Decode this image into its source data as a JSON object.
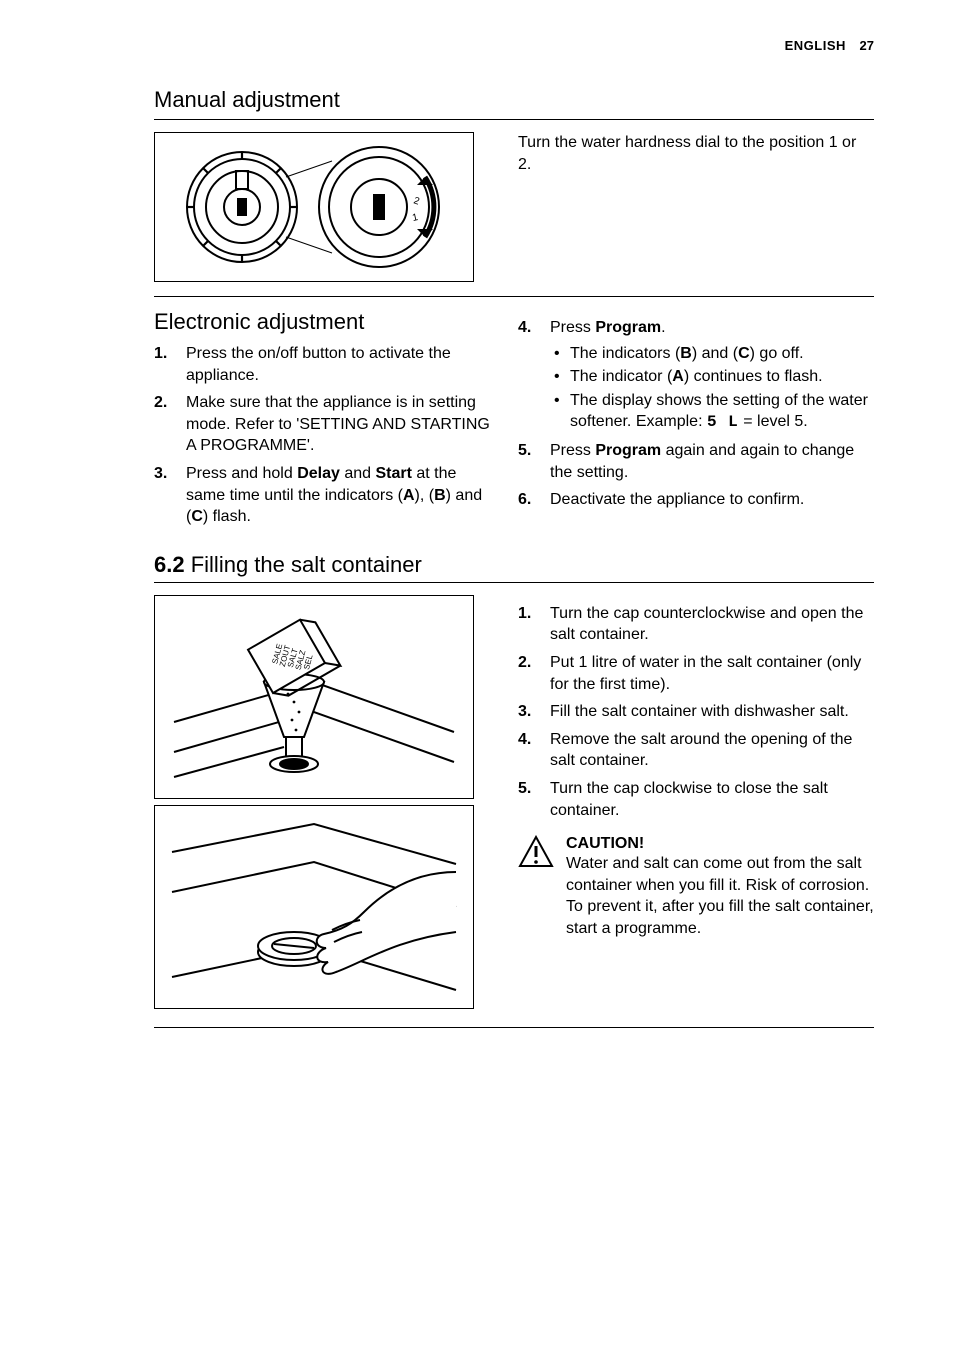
{
  "header": {
    "language": "ENGLISH",
    "page_number": "27"
  },
  "section_manual": {
    "title": "Manual adjustment",
    "right_text": "Turn the water hardness dial to the position 1 or 2."
  },
  "section_electronic": {
    "title": "Electronic adjustment",
    "steps_left": [
      "Press the on/off button to activate the appliance.",
      "Make sure that the appliance is in setting mode. Refer to 'SETTING AND STARTING A PROGRAMME'.",
      "Press and hold <b>Delay</b> and <b>Start</b> at the same time until the indicators (<b>A</b>), (<b>B</b>) and (<b>C</b>) flash."
    ],
    "steps_right": [
      {
        "text": "Press <b>Program</b>.",
        "bullets": [
          "The indicators (<b>B</b>) and (<b>C</b>) go off.",
          "The indicator (<b>A</b>) continues to flash.",
          "The display shows the setting of the water softener. Example: <span class=\"seg\">5 L</span> = level 5."
        ]
      },
      {
        "text": "Press <b>Program</b> again and again to change the setting."
      },
      {
        "text": "Deactivate the appliance to confirm."
      }
    ]
  },
  "section_salt": {
    "number": "6.2",
    "title": "Filling the salt container",
    "steps": [
      "Turn the cap counterclockwise and open the salt container.",
      "Put 1 litre of water in the salt container (only for the first time).",
      "Fill the salt container with dishwasher salt.",
      "Remove the salt around the opening of the salt container.",
      "Turn the cap clockwise to close the salt container."
    ],
    "caution": {
      "title": "CAUTION!",
      "body": "Water and salt can come out from the salt container when you fill it. Risk of corrosion. To prevent it, after you fill the salt container, start a programme."
    },
    "salt_label_lines": [
      "SALE",
      "ZOUT",
      "SALT",
      "SALZ",
      "SEL"
    ]
  },
  "colors": {
    "text": "#000000",
    "background": "#ffffff",
    "rule": "#000000"
  }
}
